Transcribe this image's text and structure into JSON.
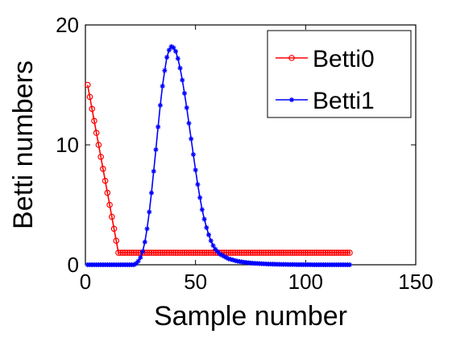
{
  "chart_data": {
    "type": "line",
    "title": "",
    "xlabel": "Sample number",
    "ylabel": "Betti numbers",
    "xlim": [
      0,
      150
    ],
    "ylim": [
      0,
      20
    ],
    "xticks": [
      0,
      50,
      100,
      150
    ],
    "yticks": [
      0,
      10,
      20
    ],
    "grid": false,
    "legend_position": "top-right",
    "series": [
      {
        "name": "Betti0",
        "color": "#ff0000",
        "marker": "circle",
        "x": [
          1,
          2,
          3,
          4,
          5,
          6,
          7,
          8,
          9,
          10,
          11,
          12,
          13,
          14,
          15,
          16,
          17,
          18,
          19,
          20,
          21,
          22,
          23,
          24,
          25,
          26,
          27,
          28,
          29,
          30,
          31,
          32,
          33,
          34,
          35,
          36,
          37,
          38,
          39,
          40,
          41,
          42,
          43,
          44,
          45,
          46,
          47,
          48,
          49,
          50,
          51,
          52,
          53,
          54,
          55,
          56,
          57,
          58,
          59,
          60,
          61,
          62,
          63,
          64,
          65,
          66,
          67,
          68,
          69,
          70,
          71,
          72,
          73,
          74,
          75,
          76,
          77,
          78,
          79,
          80,
          81,
          82,
          83,
          84,
          85,
          86,
          87,
          88,
          89,
          90,
          91,
          92,
          93,
          94,
          95,
          96,
          97,
          98,
          99,
          100,
          101,
          102,
          103,
          104,
          105,
          106,
          107,
          108,
          109,
          110,
          111,
          112,
          113,
          114,
          115,
          116,
          117,
          118,
          119,
          120
        ],
        "values": [
          15,
          14,
          13,
          12,
          11,
          10,
          9,
          8,
          7,
          6,
          5,
          4,
          3,
          2,
          1,
          1,
          1,
          1,
          1,
          1,
          1,
          1,
          1,
          1,
          1,
          1,
          1,
          1,
          1,
          1,
          1,
          1,
          1,
          1,
          1,
          1,
          1,
          1,
          1,
          1,
          1,
          1,
          1,
          1,
          1,
          1,
          1,
          1,
          1,
          1,
          1,
          1,
          1,
          1,
          1,
          1,
          1,
          1,
          1,
          1,
          1,
          1,
          1,
          1,
          1,
          1,
          1,
          1,
          1,
          1,
          1,
          1,
          1,
          1,
          1,
          1,
          1,
          1,
          1,
          1,
          1,
          1,
          1,
          1,
          1,
          1,
          1,
          1,
          1,
          1,
          1,
          1,
          1,
          1,
          1,
          1,
          1,
          1,
          1,
          1,
          1,
          1,
          1,
          1,
          1,
          1,
          1,
          1,
          1,
          1,
          1,
          1,
          1,
          1,
          1,
          1,
          1,
          1,
          1,
          1
        ]
      },
      {
        "name": "Betti1",
        "color": "#0000ff",
        "marker": "star",
        "x": [
          1,
          2,
          3,
          4,
          5,
          6,
          7,
          8,
          9,
          10,
          11,
          12,
          13,
          14,
          15,
          16,
          17,
          18,
          19,
          20,
          21,
          22,
          23,
          24,
          25,
          26,
          27,
          28,
          29,
          30,
          31,
          32,
          33,
          34,
          35,
          36,
          37,
          38,
          39,
          40,
          41,
          42,
          43,
          44,
          45,
          46,
          47,
          48,
          49,
          50,
          51,
          52,
          53,
          54,
          55,
          56,
          57,
          58,
          59,
          60,
          61,
          62,
          63,
          64,
          65,
          66,
          67,
          68,
          69,
          70,
          71,
          72,
          73,
          74,
          75,
          76,
          77,
          78,
          79,
          80,
          81,
          82,
          83,
          84,
          85,
          86,
          87,
          88,
          89,
          90,
          91,
          92,
          93,
          94,
          95,
          96,
          97,
          98,
          99,
          100,
          101,
          102,
          103,
          104,
          105,
          106,
          107,
          108,
          109,
          110,
          111,
          112,
          113,
          114,
          115,
          116,
          117,
          118,
          119,
          120
        ],
        "values": [
          0,
          0,
          0,
          0,
          0,
          0,
          0,
          0,
          0,
          0,
          0,
          0,
          0,
          0,
          0,
          0,
          0,
          0,
          0,
          0,
          0,
          0,
          0.1,
          0.3,
          0.6,
          1.1,
          1.9,
          3.0,
          4.4,
          6.0,
          7.8,
          9.6,
          11.5,
          13.3,
          14.9,
          16.2,
          17.3,
          17.9,
          18.2,
          18.1,
          17.8,
          17.2,
          16.4,
          15.4,
          14.3,
          13.1,
          11.8,
          10.5,
          9.2,
          7.9,
          6.7,
          5.6,
          4.6,
          3.8,
          3.1,
          2.5,
          2.0,
          1.6,
          1.3,
          1.1,
          0.9,
          0.8,
          0.7,
          0.6,
          0.5,
          0.45,
          0.4,
          0.35,
          0.3,
          0.27,
          0.24,
          0.21,
          0.19,
          0.17,
          0.15,
          0.13,
          0.12,
          0.11,
          0.1,
          0.09,
          0.08,
          0.07,
          0.06,
          0.06,
          0.05,
          0.05,
          0.04,
          0.04,
          0.03,
          0.03,
          0.03,
          0.02,
          0.02,
          0.02,
          0.02,
          0.01,
          0.01,
          0.01,
          0.01,
          0.01,
          0.01,
          0.01,
          0,
          0,
          0,
          0,
          0,
          0,
          0,
          0,
          0,
          0,
          0,
          0,
          0,
          0,
          0,
          0,
          0,
          0
        ]
      }
    ]
  }
}
